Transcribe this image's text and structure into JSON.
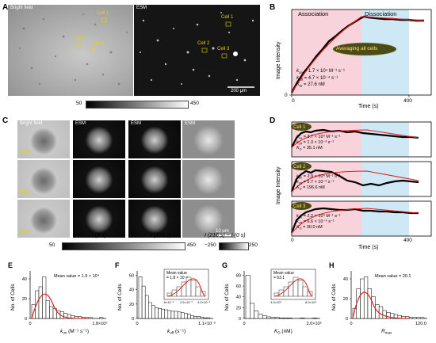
{
  "panelA": {
    "label": "A",
    "bf_label": "Bright field",
    "esm_label": "ESM",
    "cells_bf": [
      "Cell 1",
      "Cell 2",
      "Cell 3"
    ],
    "cells_esm": [
      "Cell 1",
      "Cell 2",
      "Cell 3"
    ],
    "scale_bar": "200 μm",
    "colorbar_min": "50",
    "colorbar_max": "450"
  },
  "panelB": {
    "label": "B",
    "ylabel": "Image Intensity",
    "xlabel": "Time  (s)",
    "y_zero": "0",
    "x_ticks": [
      "0",
      "400"
    ],
    "phase_assoc": "Association",
    "phase_dissoc": "Dissociation",
    "bubble": "Averaging all cells",
    "kon_label": "k",
    "kon_sub": "on",
    "kon_val": "= 1.7 × 10⁴ M⁻¹ s⁻¹",
    "koff_label": "k",
    "koff_sub": "off",
    "koff_val": "= 4.7 × 10⁻⁴ s⁻¹",
    "kd_label": "K",
    "kd_sub": "D",
    "kd_val": "= 27.6 nM",
    "color_assoc": "#f9d3dc",
    "color_dissoc": "#cfe8f5",
    "color_data": "#000000",
    "color_fit": "#e0201b"
  },
  "panelC": {
    "label": "C",
    "col_headers": [
      "Bright field",
      "ESM",
      "ESM",
      "ESM"
    ],
    "rows": [
      "Cell 1",
      "Cell 2",
      "Cell 3"
    ],
    "col_captions": [
      "I (0 s)",
      "I (216 s)",
      "I (216 s) − I (0 s)"
    ],
    "scale_bar": "10 μm",
    "cb1_min": "50",
    "cb1_max": "450",
    "cb2_min": "−250",
    "cb2_max": "250"
  },
  "panelD": {
    "label": "D",
    "ylabel": "Image Intensity",
    "xlabel": "Time  (s)",
    "x_ticks": [
      "0",
      "400"
    ],
    "cells": [
      {
        "name": "Cell 1",
        "kon": "= 3.7 × 10⁴ M⁻¹ s⁻¹",
        "koff": "= 1.3 × 10⁻³ s⁻¹",
        "kd": "= 35.1 nM"
      },
      {
        "name": "Cell 2",
        "kon": "= 2.9 × 10⁴ M⁻¹ s⁻¹",
        "koff": "= 5.7 × 10⁻³ s⁻¹",
        "kd": "= 196.6 nM"
      },
      {
        "name": "Cell 3",
        "kon": "= 2.2 × 10⁴ M⁻¹ s⁻¹",
        "koff": "= 6.6 × 10⁻⁴ s⁻¹",
        "kd": "= 30.0 nM"
      }
    ]
  },
  "panelE": {
    "label": "E",
    "ylabel": "No. of Cells",
    "xlabel_main": "k",
    "xlabel_sub": "on",
    "xlabel_unit": " (M⁻¹ s⁻¹)",
    "mean": "Mean value = 1.9 × 10⁴",
    "y_ticks": [
      "0",
      "20",
      "40"
    ],
    "x_ticks": [
      "0",
      "1.8×10⁵"
    ]
  },
  "panelF": {
    "label": "F",
    "ylabel": "No. of Cells",
    "xlabel_main": "k",
    "xlabel_sub": "off",
    "xlabel_unit": " (s⁻¹)",
    "mean": "Mean value",
    "mean2": "= 1.8 × 10⁻³",
    "y_ticks": [
      "0",
      "20",
      "40",
      "60"
    ],
    "x_ticks": [
      "0",
      "1.1×10⁻²"
    ],
    "inset_x_ticks": [
      "6×10⁻⁴",
      "2.5×10⁻³",
      "4.0×10⁻³"
    ]
  },
  "panelG": {
    "label": "G",
    "ylabel": "No. of Cells",
    "xlabel_main": "K",
    "xlabel_sub": "D",
    "xlabel_unit": " (nM)",
    "mean": "Mean value",
    "mean2": "= 63.1",
    "y_ticks": [
      "0",
      "20",
      "40",
      "60",
      "80"
    ],
    "x_ticks": [
      "0",
      "2.0×10³"
    ],
    "inset_x_ticks": [
      "4.0×10¹",
      "8.0×10¹"
    ]
  },
  "panelH": {
    "label": "H",
    "ylabel": "No. of Cells",
    "xlabel_main": "R",
    "xlabel_sub": "max",
    "xlabel_unit": "",
    "mean": "Mean value = 20.1",
    "y_ticks": [
      "0",
      "20",
      "40"
    ],
    "x_ticks": [
      "0",
      "120.0"
    ]
  }
}
